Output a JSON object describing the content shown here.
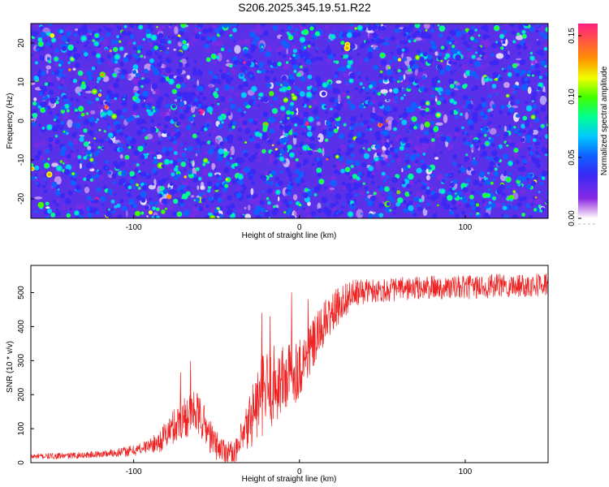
{
  "title": "S206.2025.345.19.51.R22",
  "chart_data": [
    {
      "type": "heatmap",
      "xlabel": "Height of straight line (km)",
      "ylabel": "Frequency (Hz)",
      "xlim": [
        -162,
        150
      ],
      "ylim": [
        -25,
        25
      ],
      "xticks": [
        -100,
        0,
        100
      ],
      "yticks": [
        -20,
        -10,
        0,
        10,
        20
      ],
      "colorbar": {
        "label": "Normalized spectral amplitude",
        "range": [
          0,
          0.16
        ],
        "ticks": [
          "0.00",
          "0.05",
          "0.10",
          "0.15"
        ],
        "tick_values": [
          0,
          0.05,
          0.1,
          0.15
        ]
      },
      "colors": [
        "#ffffff",
        "#d8a8f0",
        "#8a2be2",
        "#3a28f5",
        "#1060ff",
        "#00c8ff",
        "#00ff90",
        "#40ff00",
        "#f0ff00",
        "#ff9000",
        "#ff2080"
      ]
    },
    {
      "type": "line",
      "xlabel": "Height of straight line (km)",
      "ylabel": "SNR (10 * v/v)",
      "xlim": [
        -162,
        150
      ],
      "ylim": [
        0,
        580
      ],
      "xticks": [
        -100,
        0,
        100
      ],
      "yticks": [
        0,
        100,
        200,
        300,
        400,
        500
      ],
      "series_color": "#ee2222",
      "trend": {
        "x": [
          -162,
          -140,
          -120,
          -100,
          -85,
          -75,
          -68,
          -63,
          -58,
          -52,
          -45,
          -38,
          -33,
          -28,
          -22,
          -15,
          -10,
          -5,
          0,
          5,
          10,
          15,
          20,
          25,
          30,
          40,
          60,
          80,
          100,
          120,
          150
        ],
        "y": [
          18,
          20,
          25,
          35,
          60,
          110,
          140,
          150,
          120,
          60,
          35,
          30,
          80,
          150,
          200,
          230,
          240,
          260,
          280,
          320,
          360,
          410,
          440,
          470,
          490,
          505,
          510,
          515,
          515,
          520,
          525
        ]
      },
      "noise_amplitude": {
        "x": [
          -162,
          -120,
          -90,
          -75,
          -65,
          -50,
          -40,
          -30,
          -20,
          -10,
          0,
          20,
          40,
          80,
          150
        ],
        "y": [
          8,
          10,
          20,
          55,
          70,
          45,
          30,
          90,
          130,
          110,
          90,
          60,
          35,
          35,
          35
        ]
      },
      "spikes": {
        "x": [
          -66,
          -72,
          -23,
          -18,
          -5,
          5,
          12
        ],
        "y": [
          298,
          265,
          440,
          430,
          500,
          480,
          440
        ]
      }
    }
  ]
}
